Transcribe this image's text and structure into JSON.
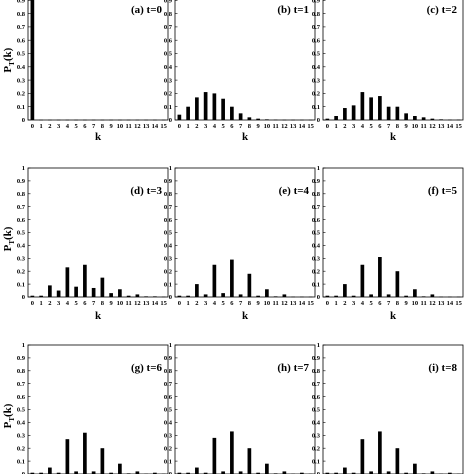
{
  "chart_data": {
    "type": "bar",
    "xlabel": "k",
    "ylabel": "P_T(k)",
    "categories": [
      "0",
      "1",
      "2",
      "3",
      "4",
      "5",
      "6",
      "7",
      "8",
      "9",
      "10",
      "11",
      "12",
      "13",
      "14",
      "15"
    ],
    "yticks": [
      "0",
      "0.1",
      "0.2",
      "0.3",
      "0.4",
      "0.5",
      "0.6",
      "0.7",
      "0.8",
      "0.9",
      "1"
    ],
    "ylim": [
      0,
      1
    ],
    "panels": [
      {
        "title": "(a) t=0",
        "values": [
          1.0,
          0.002,
          0.002,
          0.002,
          0.002,
          0.002,
          0.002,
          0.002,
          0.002,
          0.002,
          0.002,
          0.002,
          0.002,
          0.002,
          0.002,
          0.002
        ]
      },
      {
        "title": "(b) t=1",
        "values": [
          0.04,
          0.1,
          0.17,
          0.21,
          0.2,
          0.16,
          0.1,
          0.05,
          0.02,
          0.01,
          0.005,
          0.003,
          0.002,
          0.002,
          0.002,
          0.002
        ]
      },
      {
        "title": "(c) t=2",
        "values": [
          0.01,
          0.03,
          0.09,
          0.11,
          0.21,
          0.17,
          0.18,
          0.1,
          0.1,
          0.05,
          0.03,
          0.02,
          0.01,
          0.005,
          0.003,
          0.003
        ]
      },
      {
        "title": "(d) t=3",
        "values": [
          0.01,
          0.01,
          0.09,
          0.05,
          0.23,
          0.08,
          0.25,
          0.07,
          0.15,
          0.03,
          0.06,
          0.01,
          0.02,
          0.005,
          0.005,
          0.003
        ]
      },
      {
        "title": "(e) t=4",
        "values": [
          0.01,
          0.01,
          0.1,
          0.02,
          0.25,
          0.03,
          0.29,
          0.02,
          0.18,
          0.01,
          0.06,
          0.005,
          0.02,
          0.003,
          0.003,
          0.003
        ]
      },
      {
        "title": "(f) t=5",
        "values": [
          0.01,
          0.01,
          0.1,
          0.01,
          0.25,
          0.02,
          0.31,
          0.02,
          0.2,
          0.01,
          0.06,
          0.005,
          0.02,
          0.003,
          0.003,
          0.003
        ]
      },
      {
        "title": "(g) t=6",
        "values": [
          0.01,
          0.01,
          0.05,
          0.01,
          0.27,
          0.02,
          0.32,
          0.02,
          0.2,
          0.01,
          0.08,
          0.005,
          0.02,
          0.003,
          0.01,
          0.003
        ]
      },
      {
        "title": "(h) t=7",
        "values": [
          0.01,
          0.01,
          0.05,
          0.01,
          0.28,
          0.02,
          0.33,
          0.02,
          0.2,
          0.01,
          0.08,
          0.005,
          0.02,
          0.003,
          0.01,
          0.003
        ]
      },
      {
        "title": "(i) t=8",
        "values": [
          0.01,
          0.01,
          0.05,
          0.01,
          0.27,
          0.02,
          0.33,
          0.02,
          0.2,
          0.01,
          0.08,
          0.005,
          0.02,
          0.003,
          0.01,
          0.003
        ]
      }
    ]
  }
}
